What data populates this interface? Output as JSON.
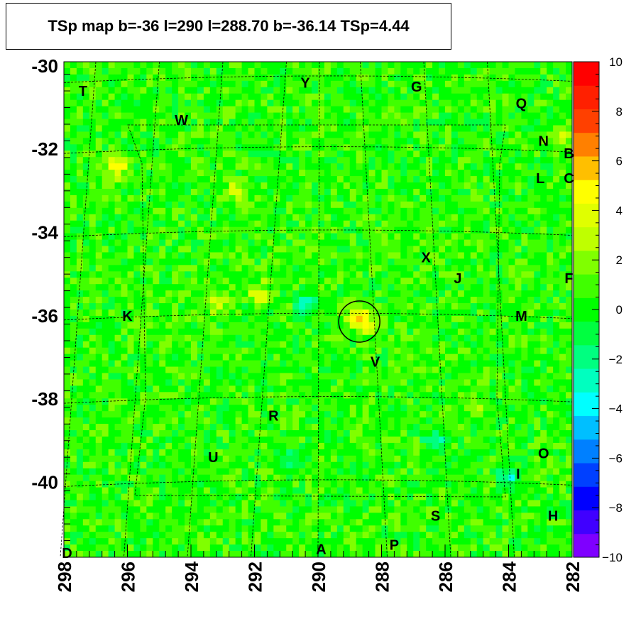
{
  "chart_data": {
    "type": "heatmap",
    "title": "TSp map b=-36 l=290 l=288.70 b=-36.14 TSp=4.44",
    "x_axis": {
      "range": [
        298,
        282
      ],
      "ticks": [
        "298",
        "296",
        "294",
        "292",
        "290",
        "288",
        "286",
        "284",
        "282"
      ]
    },
    "y_axis": {
      "range": [
        -41.8,
        -29.9
      ],
      "ticks": [
        "-30",
        "-32",
        "-34",
        "-36",
        "-38",
        "-40"
      ]
    },
    "colorbar": {
      "range": [
        -10,
        10
      ],
      "ticks": [
        "10",
        "8",
        "6",
        "4",
        "2",
        "0",
        "−2",
        "−4",
        "−6",
        "−8",
        "−10"
      ]
    },
    "background_value": 0.5,
    "hotspots": [
      {
        "l": 296.3,
        "b": -32.4,
        "value": 5
      },
      {
        "l": 288.7,
        "b": -36.0,
        "value": 4.4
      },
      {
        "l": 291.8,
        "b": -35.5,
        "value": 4
      },
      {
        "l": 293.2,
        "b": -35.7,
        "value": 3.5
      },
      {
        "l": 292.6,
        "b": -33.0,
        "value": 3
      },
      {
        "l": 282.3,
        "b": -31.7,
        "value": 3
      },
      {
        "l": 285.0,
        "b": -38.2,
        "value": 3
      },
      {
        "l": 288.5,
        "b": -36.2,
        "value": 3
      }
    ],
    "coldspots": [
      {
        "l": 284.0,
        "b": -39.9,
        "value": -3
      },
      {
        "l": 290.4,
        "b": -35.7,
        "value": -2.5
      },
      {
        "l": 286.3,
        "b": -39.0,
        "value": -2.5
      },
      {
        "l": 290.8,
        "b": -39.5,
        "value": -2
      }
    ],
    "marker": {
      "l": 288.7,
      "b": -36.14
    },
    "sources": [
      {
        "label": "T",
        "l": 297.4,
        "b": -30.6
      },
      {
        "label": "W",
        "l": 294.3,
        "b": -31.3
      },
      {
        "label": "Y",
        "l": 290.4,
        "b": -30.4
      },
      {
        "label": "G",
        "l": 286.9,
        "b": -30.5
      },
      {
        "label": "Q",
        "l": 283.6,
        "b": -30.9
      },
      {
        "label": "N",
        "l": 282.9,
        "b": -31.8
      },
      {
        "label": "B",
        "l": 282.1,
        "b": -32.1
      },
      {
        "label": "L",
        "l": 283.0,
        "b": -32.7
      },
      {
        "label": "C",
        "l": 282.1,
        "b": -32.7
      },
      {
        "label": "X",
        "l": 286.6,
        "b": -34.6
      },
      {
        "label": "J",
        "l": 285.6,
        "b": -35.1
      },
      {
        "label": "F",
        "l": 282.1,
        "b": -35.1
      },
      {
        "label": "K",
        "l": 296.0,
        "b": -36.0
      },
      {
        "label": "M",
        "l": 283.6,
        "b": -36.0
      },
      {
        "label": "V",
        "l": 288.2,
        "b": -37.1
      },
      {
        "label": "R",
        "l": 291.4,
        "b": -38.4
      },
      {
        "label": "U",
        "l": 293.3,
        "b": -39.4
      },
      {
        "label": "O",
        "l": 282.9,
        "b": -39.3
      },
      {
        "label": "I",
        "l": 283.7,
        "b": -39.8
      },
      {
        "label": "S",
        "l": 286.3,
        "b": -40.8
      },
      {
        "label": "H",
        "l": 282.6,
        "b": -40.8
      },
      {
        "label": "P",
        "l": 287.6,
        "b": -41.5
      },
      {
        "label": "A",
        "l": 289.9,
        "b": -41.6
      },
      {
        "label": "D",
        "l": 297.9,
        "b": -41.7
      }
    ]
  },
  "colors": {
    "palette": [
      "#7f00ff",
      "#4000ff",
      "#0000ff",
      "#0040ff",
      "#0080ff",
      "#00bfff",
      "#00ffff",
      "#00ffbf",
      "#00ff80",
      "#00ff40",
      "#00ff00",
      "#40ff00",
      "#80ff00",
      "#bfff00",
      "#e0ff00",
      "#ffff00",
      "#ffbf00",
      "#ff8000",
      "#ff4000",
      "#ff2000",
      "#ff0000"
    ]
  }
}
